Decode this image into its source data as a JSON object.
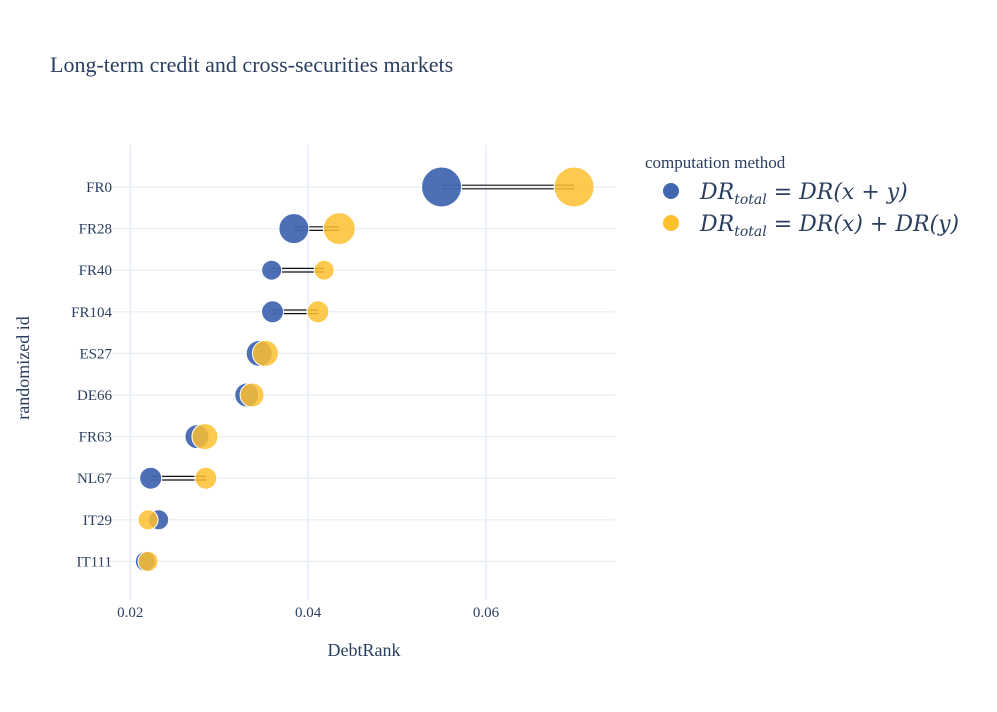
{
  "chart_data": {
    "type": "scatter",
    "title": "Long-term credit and cross-securities markets",
    "xlabel": "DebtRank",
    "ylabel": "randomized id",
    "xlim": [
      0.0175,
      0.0745
    ],
    "x_ticks": [
      0.02,
      0.04,
      0.06
    ],
    "x_tick_labels": [
      "0.02",
      "0.04",
      "0.06"
    ],
    "categories": [
      "FR0",
      "FR28",
      "FR40",
      "FR104",
      "ES27",
      "DE66",
      "FR63",
      "NL67",
      "IT29",
      "IT111"
    ],
    "series": [
      {
        "name": "DR_total = DR(x + y)",
        "color": "#4267b2",
        "values": [
          0.055,
          0.0384,
          0.0359,
          0.036,
          0.0345,
          0.0331,
          0.0275,
          0.0223,
          0.0232,
          0.0217
        ],
        "bubble_size": [
          20,
          15,
          10,
          11,
          13,
          12,
          12,
          11,
          10,
          10
        ]
      },
      {
        "name": "DR_total = DR(x) + DR(y)",
        "color": "#fdc02f",
        "values": [
          0.0699,
          0.0435,
          0.0418,
          0.0411,
          0.0352,
          0.0337,
          0.0284,
          0.0285,
          0.022,
          0.022
        ],
        "bubble_size": [
          20,
          16,
          10,
          11,
          13,
          12,
          13,
          11,
          10,
          10
        ]
      }
    ],
    "legend": {
      "title": "computation method",
      "position": "top-right",
      "entries": [
        {
          "main": "DR",
          "sub": "total",
          "rest": "= DR(x + y)"
        },
        {
          "main": "DR",
          "sub": "total",
          "rest": "= DR(x) + DR(y)"
        }
      ]
    },
    "grid": true
  }
}
